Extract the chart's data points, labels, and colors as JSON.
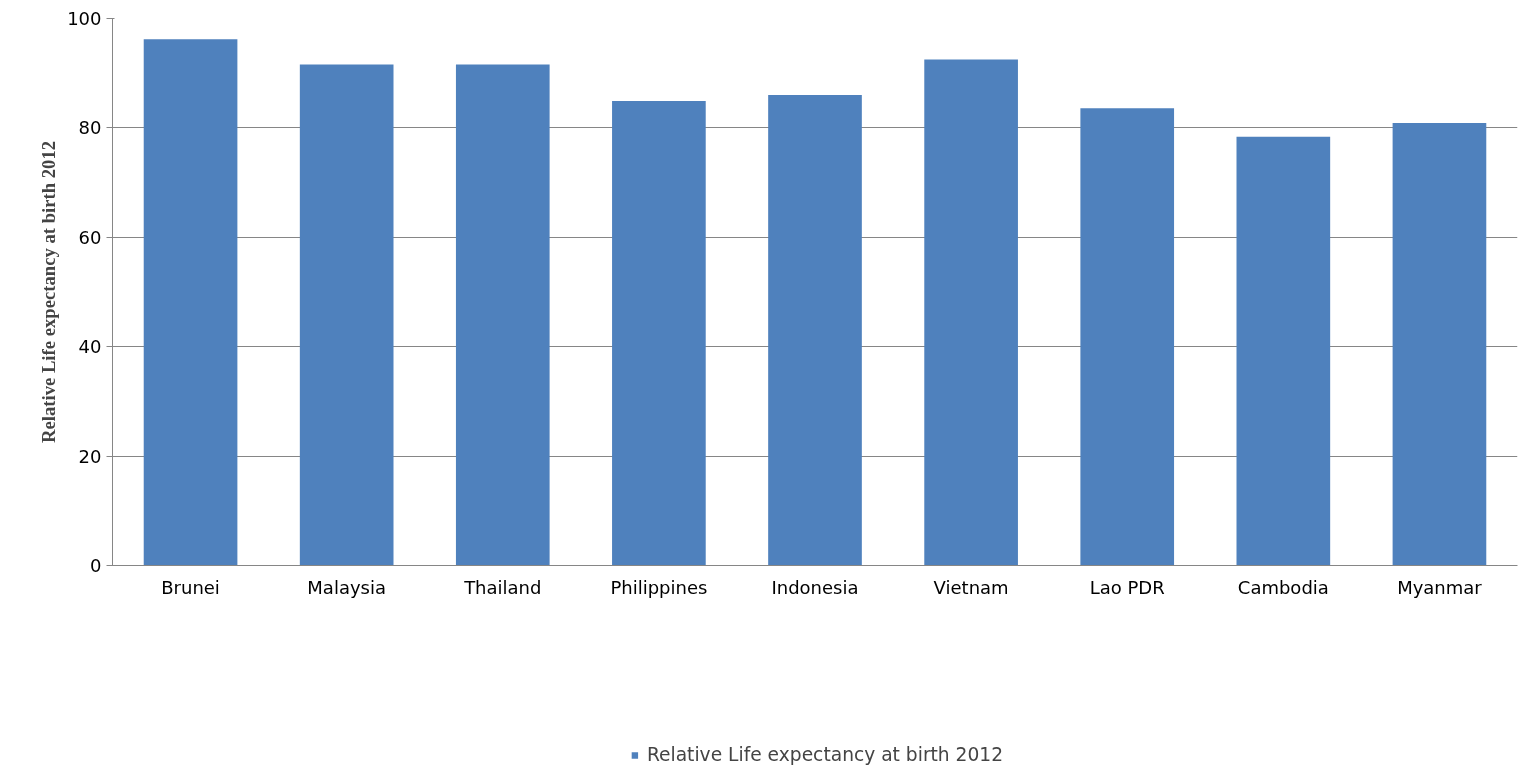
{
  "chart_data": {
    "type": "bar",
    "ylabel": "Relative Life expectancy at birth 2012",
    "categories": [
      "Brunei",
      "Malaysia",
      "Thailand",
      "Philippines",
      "Indonesia",
      "Vietnam",
      "Lao PDR",
      "Cambodia",
      "Myanmar"
    ],
    "series": [
      {
        "name": "Relative Life expectancy at birth 2012",
        "color": "#4f81bd",
        "values": [
          96.2,
          91.6,
          91.6,
          84.9,
          86.0,
          92.5,
          83.6,
          78.4,
          80.9
        ]
      }
    ],
    "ylim": [
      0,
      100
    ],
    "yticks": [
      0,
      20,
      40,
      60,
      80,
      100
    ],
    "grid": "y",
    "legend": "bottom"
  }
}
